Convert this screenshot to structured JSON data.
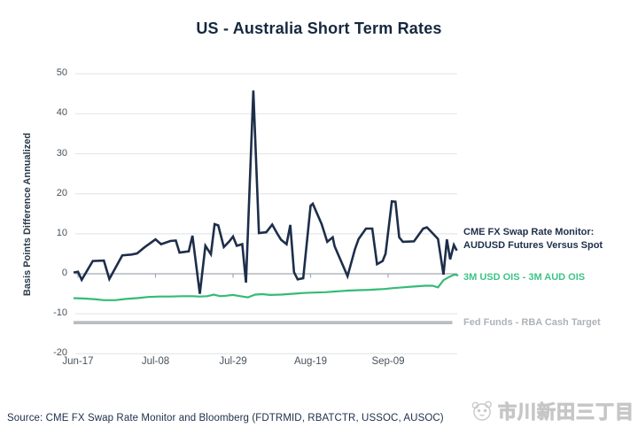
{
  "title": "US - Australia Short Term Rates",
  "source": "Source: CME FX Swap Rate Monitor and Bloomberg (FDTRMID, RBATCTR, USSOC, AUSOC)",
  "watermark": {
    "icon": "panda-icon",
    "text": "市川新田三丁目"
  },
  "colors": {
    "navy": "#1d2e4a",
    "green": "#35bb77",
    "green_text": "#3ec487",
    "gray_line": "#b9bdc2",
    "gray_text": "#aeb3b9",
    "grid": "#e4e7ea",
    "zero_line": "#a3a9af",
    "tick_text": "#48525c",
    "title_text": "#16283f"
  },
  "legend": {
    "navy": {
      "lines": [
        "CME FX Swap Rate Monitor:",
        "AUDUSD Futures Versus Spot"
      ]
    },
    "green": {
      "label": "3M USD OIS - 3M AUD OIS"
    },
    "gray": {
      "label": "Fed Funds - RBA Cash Target"
    }
  },
  "chart_data": {
    "type": "line",
    "title": "US - Australia Short Term Rates",
    "xlabel": "",
    "ylabel": "Basis Points Difference Annualized",
    "ylim": [
      -20,
      50
    ],
    "y_ticks": [
      50,
      40,
      30,
      20,
      10,
      0,
      -10,
      -20
    ],
    "grid": "horizontal",
    "legend_position": "right",
    "x_ticks": [
      {
        "label": "Jun-17",
        "day": 0
      },
      {
        "label": "Jul-08",
        "day": 21
      },
      {
        "label": "Jul-29",
        "day": 42
      },
      {
        "label": "Aug-19",
        "day": 63
      },
      {
        "label": "Sep-09",
        "day": 84
      }
    ],
    "series": [
      {
        "name": "Fed Funds - RBA Cash Target",
        "color": "#b9bdc2",
        "width": 3.8,
        "points": [
          [
            -1.2,
            -12.2
          ],
          [
            101.4,
            -12.2
          ]
        ]
      },
      {
        "name": "3M USD OIS - 3M AUD OIS",
        "color": "#35bb77",
        "width": 2.2,
        "points": [
          [
            -1.2,
            -6.1
          ],
          [
            2,
            -6.2
          ],
          [
            5,
            -6.4
          ],
          [
            7,
            -6.6
          ],
          [
            10,
            -6.6
          ],
          [
            13,
            -6.3
          ],
          [
            16,
            -6.1
          ],
          [
            19,
            -5.8
          ],
          [
            22,
            -5.7
          ],
          [
            25,
            -5.7
          ],
          [
            28,
            -5.6
          ],
          [
            31,
            -5.6
          ],
          [
            33,
            -5.7
          ],
          [
            35,
            -5.6
          ],
          [
            36.8,
            -5.2
          ],
          [
            38.5,
            -5.6
          ],
          [
            40,
            -5.5
          ],
          [
            42,
            -5.3
          ],
          [
            44,
            -5.6
          ],
          [
            46,
            -5.9
          ],
          [
            48,
            -5.2
          ],
          [
            50,
            -5.1
          ],
          [
            52,
            -5.3
          ],
          [
            55,
            -5.2
          ],
          [
            58,
            -5.0
          ],
          [
            61,
            -4.8
          ],
          [
            64,
            -4.7
          ],
          [
            67,
            -4.6
          ],
          [
            70,
            -4.4
          ],
          [
            73,
            -4.2
          ],
          [
            76,
            -4.1
          ],
          [
            79,
            -4.0
          ],
          [
            81,
            -3.9
          ],
          [
            83,
            -3.8
          ],
          [
            85,
            -3.6
          ],
          [
            88,
            -3.4
          ],
          [
            91,
            -3.2
          ],
          [
            94,
            -3.0
          ],
          [
            96,
            -3.0
          ],
          [
            97.5,
            -3.4
          ],
          [
            99,
            -1.6
          ],
          [
            100.5,
            -0.8
          ],
          [
            102,
            -0.2
          ],
          [
            103,
            -0.4
          ]
        ]
      },
      {
        "name": "CME FX Swap Rate Monitor: AUDUSD Futures Versus Spot",
        "color": "#1d2e4a",
        "width": 2.6,
        "points": [
          [
            -1.2,
            0.3
          ],
          [
            0,
            0.5
          ],
          [
            1,
            -1.5
          ],
          [
            4,
            3.2
          ],
          [
            7,
            3.3
          ],
          [
            8.5,
            -1.3
          ],
          [
            12,
            4.6
          ],
          [
            14.5,
            4.8
          ],
          [
            16,
            5.1
          ],
          [
            18,
            6.6
          ],
          [
            21,
            8.6
          ],
          [
            22.5,
            7.4
          ],
          [
            25,
            8.2
          ],
          [
            26.5,
            8.3
          ],
          [
            27.5,
            5.3
          ],
          [
            30,
            5.6
          ],
          [
            31,
            9.5
          ],
          [
            33,
            -5.0
          ],
          [
            34.5,
            7.0
          ],
          [
            36,
            4.9
          ],
          [
            37,
            12.4
          ],
          [
            38,
            12.1
          ],
          [
            39.5,
            6.7
          ],
          [
            41,
            8.1
          ],
          [
            42,
            9.3
          ],
          [
            43,
            7.0
          ],
          [
            44.5,
            7.4
          ],
          [
            45.5,
            -2.2
          ],
          [
            47.5,
            45.8
          ],
          [
            49,
            10.2
          ],
          [
            51,
            10.4
          ],
          [
            52.6,
            12.3
          ],
          [
            54,
            10.0
          ],
          [
            55,
            8.5
          ],
          [
            56.5,
            7.4
          ],
          [
            57.5,
            12.2
          ],
          [
            58.5,
            0.4
          ],
          [
            59.5,
            -1.4
          ],
          [
            61,
            -1.1
          ],
          [
            63,
            17.0
          ],
          [
            63.6,
            17.5
          ],
          [
            66,
            12.4
          ],
          [
            67.5,
            8.0
          ],
          [
            69,
            9.1
          ],
          [
            69.5,
            6.9
          ],
          [
            73,
            -0.6
          ],
          [
            75,
            6.1
          ],
          [
            76,
            8.7
          ],
          [
            78,
            11.3
          ],
          [
            79.7,
            11.3
          ],
          [
            81,
            2.4
          ],
          [
            82.5,
            3.2
          ],
          [
            83.3,
            5.0
          ],
          [
            85,
            18.1
          ],
          [
            86,
            18.0
          ],
          [
            87,
            9.1
          ],
          [
            88,
            8.0
          ],
          [
            91,
            8.1
          ],
          [
            93.5,
            11.3
          ],
          [
            94.5,
            11.6
          ],
          [
            96,
            10.2
          ],
          [
            97.5,
            8.7
          ],
          [
            99,
            -0.2
          ],
          [
            99.9,
            8.6
          ],
          [
            100.8,
            3.6
          ],
          [
            101.8,
            7.2
          ],
          [
            102.6,
            5.8
          ]
        ]
      }
    ]
  }
}
